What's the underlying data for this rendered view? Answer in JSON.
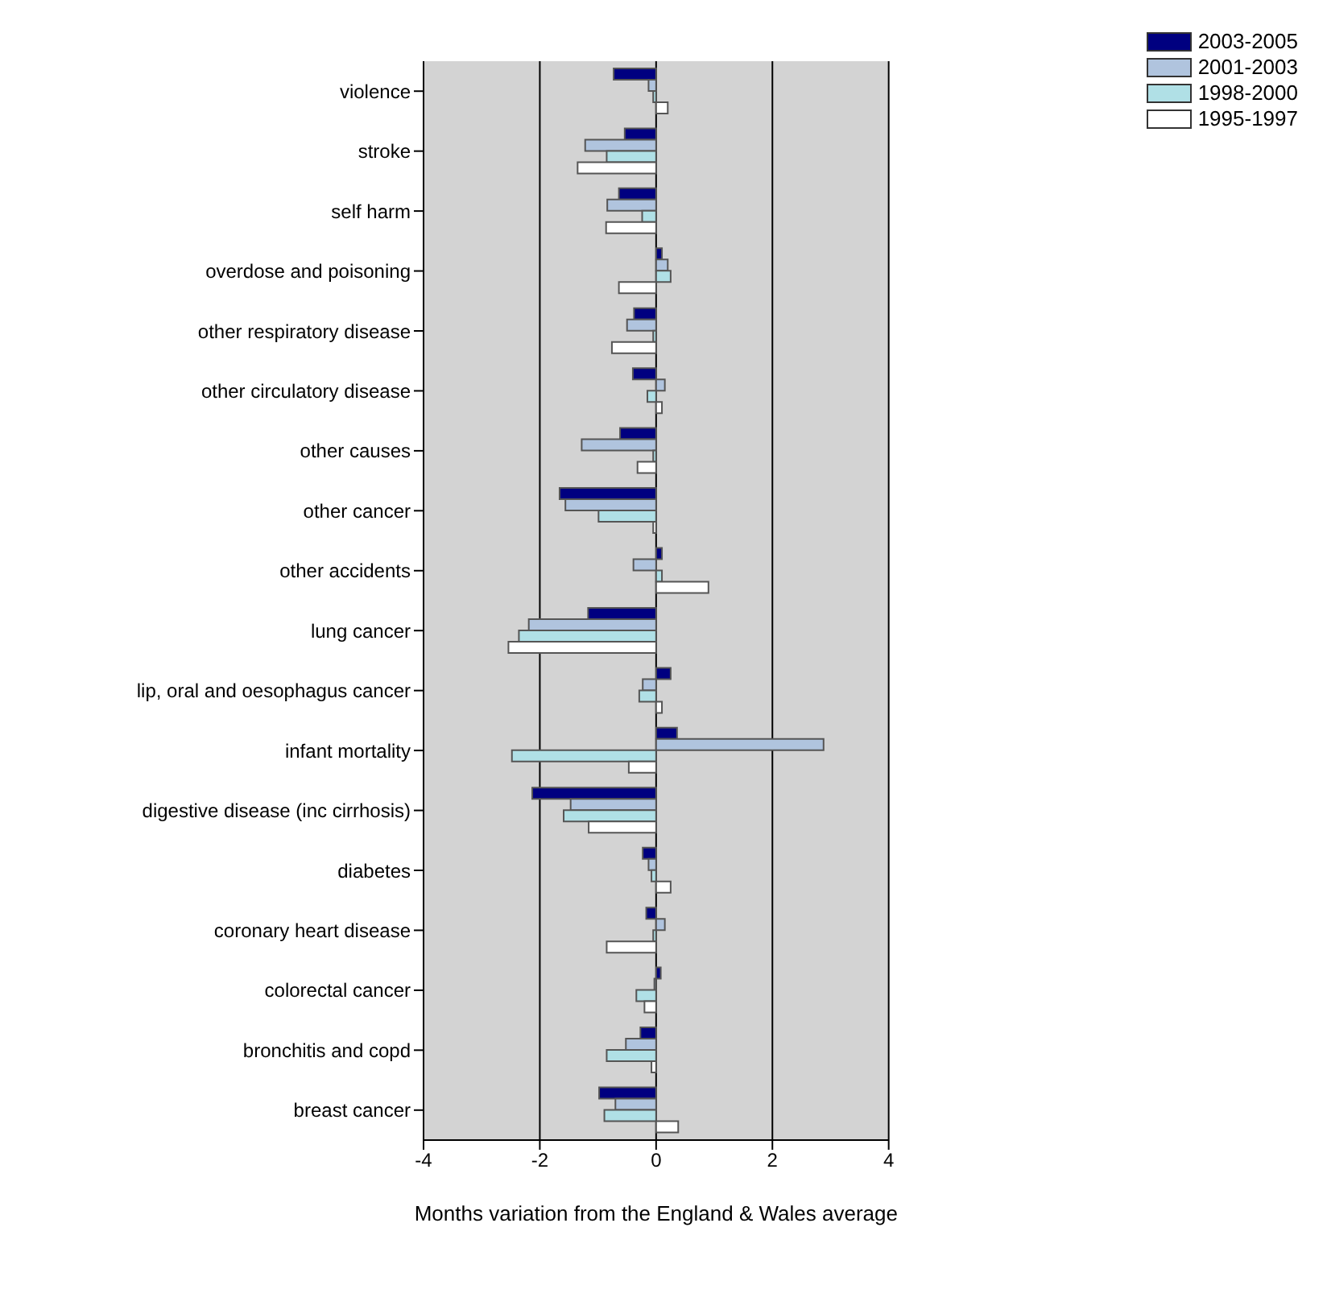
{
  "chart_data": {
    "type": "bar",
    "orientation": "horizontal",
    "xlabel": "Months variation from the England & Wales average",
    "categories": [
      "violence",
      "stroke",
      "self harm",
      "overdose and poisoning",
      "other respiratory disease",
      "other circulatory disease",
      "other causes",
      "other cancer",
      "other accidents",
      "lung cancer",
      "lip, oral and oesophagus cancer",
      "infant mortality",
      "digestive disease (inc cirrhosis)",
      "diabetes",
      "coronary heart disease",
      "colorectal cancer",
      "bronchitis and copd",
      "breast cancer"
    ],
    "series": [
      {
        "name": "2003-2005",
        "color": "#000080",
        "values": [
          -0.73,
          -0.54,
          -0.64,
          0.1,
          -0.38,
          -0.4,
          -0.62,
          -1.66,
          0.1,
          -1.17,
          0.25,
          0.36,
          -2.13,
          -0.23,
          -0.17,
          0.08,
          -0.27,
          -0.98
        ]
      },
      {
        "name": "2001-2003",
        "color": "#b0c4de",
        "values": [
          -0.13,
          -1.22,
          -0.84,
          0.2,
          -0.5,
          0.15,
          -1.28,
          -1.56,
          -0.39,
          -2.19,
          -0.23,
          2.88,
          -1.47,
          -0.13,
          0.15,
          -0.03,
          -0.52,
          -0.7
        ]
      },
      {
        "name": "1998-2000",
        "color": "#b0e0e6",
        "values": [
          -0.05,
          -0.85,
          -0.24,
          0.25,
          -0.05,
          -0.15,
          -0.05,
          -0.99,
          0.1,
          -2.36,
          -0.29,
          -2.48,
          -1.59,
          -0.08,
          -0.05,
          -0.34,
          -0.85,
          -0.89
        ]
      },
      {
        "name": "1995-1997",
        "color": "#ffffff",
        "values": [
          0.2,
          -1.35,
          -0.86,
          -0.64,
          -0.76,
          0.1,
          -0.32,
          -0.05,
          0.9,
          -2.54,
          0.1,
          -0.47,
          -1.16,
          0.25,
          -0.85,
          -0.2,
          -0.08,
          0.38
        ]
      }
    ],
    "xlim": [
      -4,
      4
    ],
    "xticks": [
      -4,
      -2,
      0,
      2,
      4
    ],
    "grid": "x",
    "legend": "top right"
  }
}
